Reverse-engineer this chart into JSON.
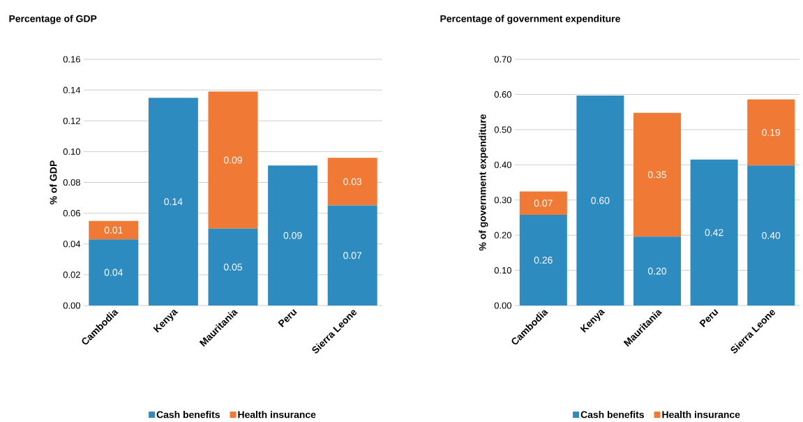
{
  "chart_data": [
    {
      "type": "bar",
      "stacked": true,
      "title": "Percentage of GDP",
      "ylabel": "% of GDP",
      "categories": [
        "Cambodia",
        "Kenya",
        "Mauritania",
        "Peru",
        "Sierra Leone"
      ],
      "series": [
        {
          "name": "Cash benefits",
          "color": "#2e8bc0",
          "values": [
            0.043,
            0.135,
            0.05,
            0.091,
            0.065
          ],
          "value_labels": [
            "0.04",
            "0.14",
            "0.05",
            "0.09",
            "0.07"
          ]
        },
        {
          "name": "Health insurance",
          "color": "#f07a35",
          "values": [
            0.012,
            null,
            0.089,
            null,
            0.031
          ],
          "value_labels": [
            "0.01",
            null,
            "0.09",
            null,
            "0.03"
          ]
        }
      ],
      "ylim": [
        0,
        0.16
      ],
      "yticks": [
        {
          "value": 0,
          "label": "0.00"
        },
        0.02,
        0.04,
        0.06,
        0.08,
        {
          "value": 0.1,
          "label": "0.10"
        },
        0.12,
        0.14,
        0.16
      ],
      "grid": "y",
      "legend": "bottom"
    },
    {
      "type": "bar",
      "stacked": true,
      "title": "Percentage of government expenditure",
      "ylabel": "% of government expenditure",
      "categories": [
        "Cambodia",
        "Kenya",
        "Mauritania",
        "Peru",
        "Sierra Leone"
      ],
      "series": [
        {
          "name": "Cash benefits",
          "color": "#2e8bc0",
          "values": [
            0.258,
            0.597,
            0.196,
            0.415,
            0.398
          ],
          "value_labels": [
            "0.26",
            "0.60",
            "0.20",
            "0.42",
            "0.40"
          ]
        },
        {
          "name": "Health insurance",
          "color": "#f07a35",
          "values": [
            0.066,
            null,
            0.352,
            null,
            0.188
          ],
          "value_labels": [
            "0.07",
            null,
            "0.35",
            null,
            "0.19"
          ]
        }
      ],
      "ylim": [
        0,
        0.7
      ],
      "yticks": [
        {
          "value": 0,
          "label": "0.00"
        },
        {
          "value": 0.1,
          "label": "0.10"
        },
        {
          "value": 0.2,
          "label": "0.20"
        },
        {
          "value": 0.3,
          "label": "0.30"
        },
        {
          "value": 0.4,
          "label": "0.40"
        },
        {
          "value": 0.5,
          "label": "0.50"
        },
        {
          "value": 0.6,
          "label": "0.60"
        },
        {
          "value": 0.7,
          "label": "0.70"
        }
      ],
      "grid": "y",
      "legend": "bottom"
    }
  ]
}
